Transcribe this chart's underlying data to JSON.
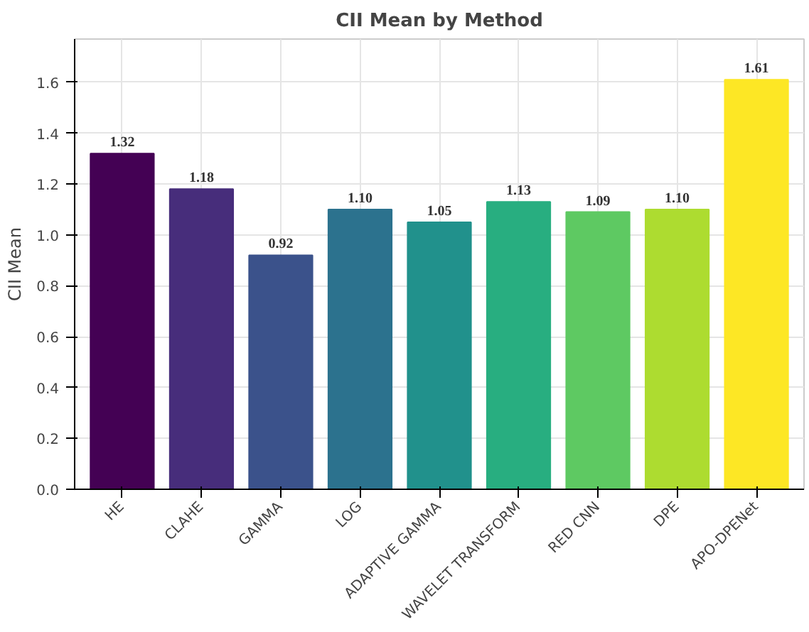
{
  "chart_data": {
    "type": "bar",
    "title": "CII Mean by Method",
    "ylabel": "CII Mean",
    "categories": [
      "HE",
      "CLAHE",
      "GAMMA",
      "LOG",
      "ADAPTIVE GAMMA",
      "WAVELET TRANSFORM",
      "RED CNN",
      "DPE",
      "APO-DPENet"
    ],
    "values": [
      1.32,
      1.18,
      0.92,
      1.1,
      1.05,
      1.13,
      1.09,
      1.1,
      1.61
    ],
    "value_labels": [
      "1.32",
      "1.18",
      "0.92",
      "1.10",
      "1.05",
      "1.13",
      "1.09",
      "1.10",
      "1.61"
    ],
    "colors": [
      "#440154",
      "#472d7b",
      "#3b528b",
      "#2c728e",
      "#21918c",
      "#28ae80",
      "#5ec962",
      "#addc30",
      "#fde725"
    ],
    "ylim": [
      0,
      1.77
    ],
    "yticks": [
      {
        "value": 0,
        "label": "0.0"
      },
      {
        "value": 0.2,
        "label": "0.2"
      },
      {
        "value": 0.4,
        "label": "0.4"
      },
      {
        "value": 0.6,
        "label": "0.6"
      },
      {
        "value": 0.8,
        "label": "0.8"
      },
      {
        "value": 1.0,
        "label": "1.0"
      },
      {
        "value": 1.2,
        "label": "1.2"
      },
      {
        "value": 1.4,
        "label": "1.4"
      },
      {
        "value": 1.6,
        "label": "1.6"
      }
    ],
    "grid": true
  }
}
